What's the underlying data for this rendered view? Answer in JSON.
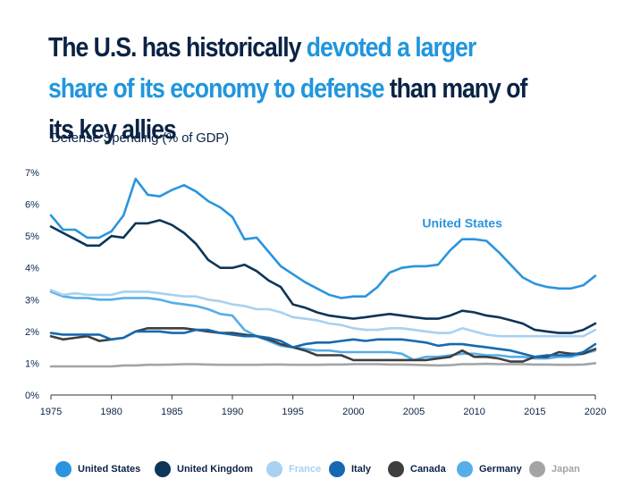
{
  "title": {
    "part1": "The U.S. has historically ",
    "part2": "devoted a larger share of its economy to defense",
    "part3": " than many of its key allies"
  },
  "subtitle": "Defense Spending (% of GDP)",
  "colors": {
    "us": "#2a95de",
    "uk": "#0d3557",
    "france": "#a9d1f0",
    "italy": "#1669b0",
    "canada": "#3d3f41",
    "germany": "#55aee8",
    "japan": "#a3a4a6",
    "title_dark": "#0b2344",
    "axis": "#555555"
  },
  "chart_data": {
    "type": "line",
    "title": "Defense Spending (% of GDP)",
    "xlabel": "",
    "ylabel": "",
    "x": [
      1975,
      1976,
      1977,
      1978,
      1979,
      1980,
      1981,
      1982,
      1983,
      1984,
      1985,
      1986,
      1987,
      1988,
      1989,
      1990,
      1991,
      1992,
      1993,
      1994,
      1995,
      1996,
      1997,
      1998,
      1999,
      2000,
      2001,
      2002,
      2003,
      2004,
      2005,
      2006,
      2007,
      2008,
      2009,
      2010,
      2011,
      2012,
      2013,
      2014,
      2015,
      2016,
      2017,
      2018,
      2019,
      2020
    ],
    "xlim": [
      1975,
      2020
    ],
    "ylim": [
      0,
      7
    ],
    "x_ticks": [
      "1975",
      "1980",
      "1985",
      "1990",
      "1995",
      "2000",
      "2005",
      "2010",
      "2015",
      "2020"
    ],
    "y_ticks": [
      "0%",
      "1%",
      "2%",
      "3%",
      "4%",
      "5%",
      "6%",
      "7%"
    ],
    "annotation": "United States",
    "series": [
      {
        "key": "us",
        "name": "United States",
        "values": [
          5.65,
          5.2,
          5.2,
          4.95,
          4.95,
          5.15,
          5.65,
          6.8,
          6.3,
          6.25,
          6.45,
          6.6,
          6.4,
          6.1,
          5.9,
          5.6,
          4.9,
          4.95,
          4.5,
          4.05,
          3.8,
          3.55,
          3.35,
          3.15,
          3.05,
          3.1,
          3.1,
          3.4,
          3.85,
          4.0,
          4.05,
          4.05,
          4.1,
          4.55,
          4.9,
          4.9,
          4.85,
          4.5,
          4.1,
          3.7,
          3.5,
          3.4,
          3.35,
          3.35,
          3.45,
          3.75
        ]
      },
      {
        "key": "uk",
        "name": "United Kingdom",
        "values": [
          5.3,
          5.1,
          4.9,
          4.7,
          4.7,
          5.0,
          4.95,
          5.4,
          5.4,
          5.5,
          5.35,
          5.1,
          4.75,
          4.25,
          4.0,
          4.0,
          4.1,
          3.9,
          3.6,
          3.4,
          2.85,
          2.75,
          2.6,
          2.5,
          2.45,
          2.4,
          2.45,
          2.5,
          2.55,
          2.5,
          2.45,
          2.4,
          2.4,
          2.5,
          2.65,
          2.6,
          2.5,
          2.45,
          2.35,
          2.25,
          2.05,
          2.0,
          1.95,
          1.95,
          2.05,
          2.25
        ]
      },
      {
        "key": "france",
        "name": "France",
        "values": [
          3.3,
          3.15,
          3.2,
          3.15,
          3.15,
          3.15,
          3.25,
          3.25,
          3.25,
          3.2,
          3.15,
          3.1,
          3.1,
          3.0,
          2.95,
          2.85,
          2.8,
          2.7,
          2.7,
          2.6,
          2.45,
          2.4,
          2.35,
          2.25,
          2.2,
          2.1,
          2.05,
          2.05,
          2.1,
          2.1,
          2.05,
          2.0,
          1.95,
          1.95,
          2.1,
          2.0,
          1.9,
          1.85,
          1.85,
          1.85,
          1.85,
          1.85,
          1.85,
          1.85,
          1.85,
          2.05
        ]
      },
      {
        "key": "italy",
        "name": "Italy",
        "values": [
          1.95,
          1.9,
          1.9,
          1.9,
          1.9,
          1.75,
          1.8,
          2.0,
          2.0,
          2.0,
          1.95,
          1.95,
          2.05,
          2.05,
          1.95,
          1.9,
          1.85,
          1.85,
          1.8,
          1.7,
          1.5,
          1.6,
          1.65,
          1.65,
          1.7,
          1.75,
          1.7,
          1.75,
          1.75,
          1.75,
          1.7,
          1.65,
          1.55,
          1.6,
          1.6,
          1.55,
          1.5,
          1.45,
          1.4,
          1.3,
          1.2,
          1.25,
          1.25,
          1.25,
          1.35,
          1.6
        ]
      },
      {
        "key": "canada",
        "name": "Canada",
        "values": [
          1.85,
          1.75,
          1.8,
          1.85,
          1.7,
          1.75,
          1.8,
          2.0,
          2.1,
          2.1,
          2.1,
          2.1,
          2.05,
          2.0,
          1.95,
          1.95,
          1.9,
          1.85,
          1.75,
          1.6,
          1.5,
          1.4,
          1.25,
          1.25,
          1.25,
          1.1,
          1.1,
          1.1,
          1.1,
          1.1,
          1.1,
          1.1,
          1.15,
          1.2,
          1.4,
          1.2,
          1.2,
          1.15,
          1.05,
          1.05,
          1.2,
          1.2,
          1.35,
          1.3,
          1.3,
          1.45
        ]
      },
      {
        "key": "germany",
        "name": "Germany",
        "values": [
          3.25,
          3.1,
          3.05,
          3.05,
          3.0,
          3.0,
          3.05,
          3.05,
          3.05,
          3.0,
          2.9,
          2.85,
          2.8,
          2.7,
          2.55,
          2.5,
          2.05,
          1.85,
          1.7,
          1.55,
          1.5,
          1.45,
          1.4,
          1.4,
          1.35,
          1.35,
          1.35,
          1.35,
          1.35,
          1.3,
          1.1,
          1.2,
          1.2,
          1.25,
          1.3,
          1.3,
          1.25,
          1.25,
          1.2,
          1.2,
          1.15,
          1.15,
          1.2,
          1.2,
          1.3,
          1.4
        ]
      },
      {
        "key": "japan",
        "name": "Japan",
        "values": [
          0.9,
          0.9,
          0.9,
          0.9,
          0.9,
          0.9,
          0.93,
          0.93,
          0.95,
          0.95,
          0.96,
          0.97,
          0.97,
          0.96,
          0.95,
          0.95,
          0.95,
          0.95,
          0.96,
          0.96,
          0.95,
          0.95,
          0.95,
          0.96,
          0.96,
          0.97,
          0.97,
          0.97,
          0.96,
          0.96,
          0.95,
          0.94,
          0.93,
          0.94,
          0.97,
          0.97,
          0.98,
          0.97,
          0.97,
          0.97,
          0.96,
          0.96,
          0.95,
          0.95,
          0.96,
          1.0
        ]
      }
    ]
  },
  "legend": [
    {
      "key": "us",
      "label": "United States"
    },
    {
      "key": "uk",
      "label": "United Kingdom"
    },
    {
      "key": "france",
      "label": "France"
    },
    {
      "key": "italy",
      "label": "Italy"
    },
    {
      "key": "canada",
      "label": "Canada"
    },
    {
      "key": "germany",
      "label": "Germany"
    },
    {
      "key": "japan",
      "label": "Japan"
    }
  ]
}
